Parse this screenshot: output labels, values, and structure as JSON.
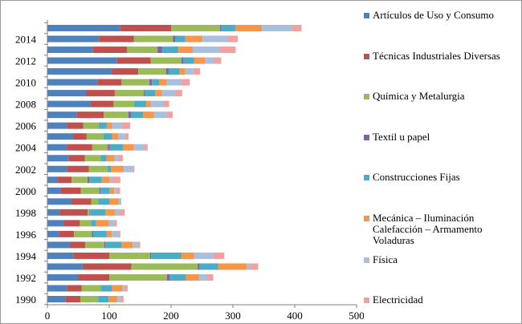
{
  "chart_data": {
    "type": "bar",
    "orientation": "horizontal",
    "stacked": true,
    "categories": [
      "1990",
      "1991",
      "1992",
      "1993",
      "1994",
      "1995",
      "1996",
      "1997",
      "1998",
      "1999",
      "2000",
      "2001",
      "2002",
      "2003",
      "2004",
      "2005",
      "2006",
      "2007",
      "2008",
      "2009",
      "2010",
      "2011",
      "2012",
      "2013",
      "2014",
      "2015"
    ],
    "y_tick_labels": [
      "1990",
      "1992",
      "1994",
      "1996",
      "1998",
      "2000",
      "2002",
      "2004",
      "2006",
      "2008",
      "2010",
      "2012",
      "2014"
    ],
    "x_ticks": [
      0,
      100,
      200,
      300,
      400,
      500
    ],
    "xlim": [
      0,
      500
    ],
    "grid": false,
    "legend_placement": "right",
    "series": [
      {
        "name": "Artículos de Uso y Consumo",
        "color": "#4f81bd",
        "values": [
          29.5,
          31.6,
          50,
          57,
          42,
          37,
          19,
          26.5,
          20,
          39,
          22,
          17,
          32,
          34,
          32,
          41.5,
          32,
          47,
          70,
          63,
          81,
          104,
          112,
          73,
          84,
          118
        ]
      },
      {
        "name": "Técnicas Industriales Diversas",
        "color": "#c0504d",
        "values": [
          24,
          24,
          50.4,
          79,
          58,
          24,
          24,
          26,
          45,
          32,
          32,
          22,
          35,
          26.5,
          40.6,
          22,
          26,
          44,
          37,
          46,
          39,
          43,
          55,
          56,
          56,
          82
        ]
      },
      {
        "name": "Química y Metalurgia",
        "color": "#9bbb59",
        "values": [
          28.6,
          30.8,
          93,
          107,
          66,
          31,
          29,
          18,
          3,
          11.5,
          30,
          26,
          30,
          25.6,
          25,
          27,
          25,
          40,
          33,
          47,
          45,
          45,
          50,
          49,
          63,
          79
        ]
      },
      {
        "name": "Textil u papel",
        "color": "#8064a2",
        "values": [
          0,
          0,
          4,
          3,
          2,
          2,
          2,
          0,
          1,
          0,
          2,
          3,
          0,
          0,
          3.4,
          0,
          0,
          4,
          0,
          2,
          4,
          4,
          3,
          8,
          4,
          2
        ]
      },
      {
        "name": "Construcciones Fijas",
        "color": "#4bacc6",
        "values": [
          17,
          18,
          27,
          30,
          49,
          26,
          22,
          8,
          25,
          18,
          15,
          20,
          6,
          9.4,
          21,
          14,
          13,
          20,
          20,
          16,
          12,
          17,
          17.5,
          26,
          16,
          23
        ]
      },
      {
        "name": "Mecánica – Iluminación Calefacción – Armamento Voladuras",
        "color": "#f79646",
        "values": [
          14,
          17,
          21,
          46,
          20,
          18,
          8,
          21,
          15,
          15,
          7,
          13,
          20.5,
          13,
          18,
          10,
          9,
          17,
          7,
          11,
          12,
          10,
          17.5,
          23,
          28,
          43
        ]
      },
      {
        "name": "Física",
        "color": "#a7c0de",
        "values": [
          4,
          3.4,
          12.4,
          6,
          31,
          8,
          11,
          9,
          8,
          4,
          3.5,
          3,
          14,
          5.5,
          16,
          11,
          15,
          20.5,
          20,
          22,
          23.5,
          13,
          14.5,
          43,
          40,
          49
        ]
      },
      {
        "name": "Electricidad",
        "color": "#f2a0a0",
        "values": [
          6,
          5,
          10.3,
          13,
          18,
          4,
          3,
          4,
          8,
          0,
          6,
          14,
          3,
          8,
          6,
          6,
          14,
          10,
          10,
          11,
          13.7,
          11,
          11.5,
          26.5,
          17,
          15
        ]
      }
    ],
    "legend_lines": [
      [
        "Artículos de Uso y Consumo"
      ],
      [
        "Técnicas Industriales Diversas"
      ],
      [
        "Química y Metalurgia"
      ],
      [
        "Textil u papel"
      ],
      [
        "Construcciones Fijas"
      ],
      [
        "Mecánica – Iluminación",
        "Calefacción – Armamento",
        "Voladuras"
      ],
      [
        "Física"
      ],
      [
        "Electricidad"
      ]
    ]
  }
}
